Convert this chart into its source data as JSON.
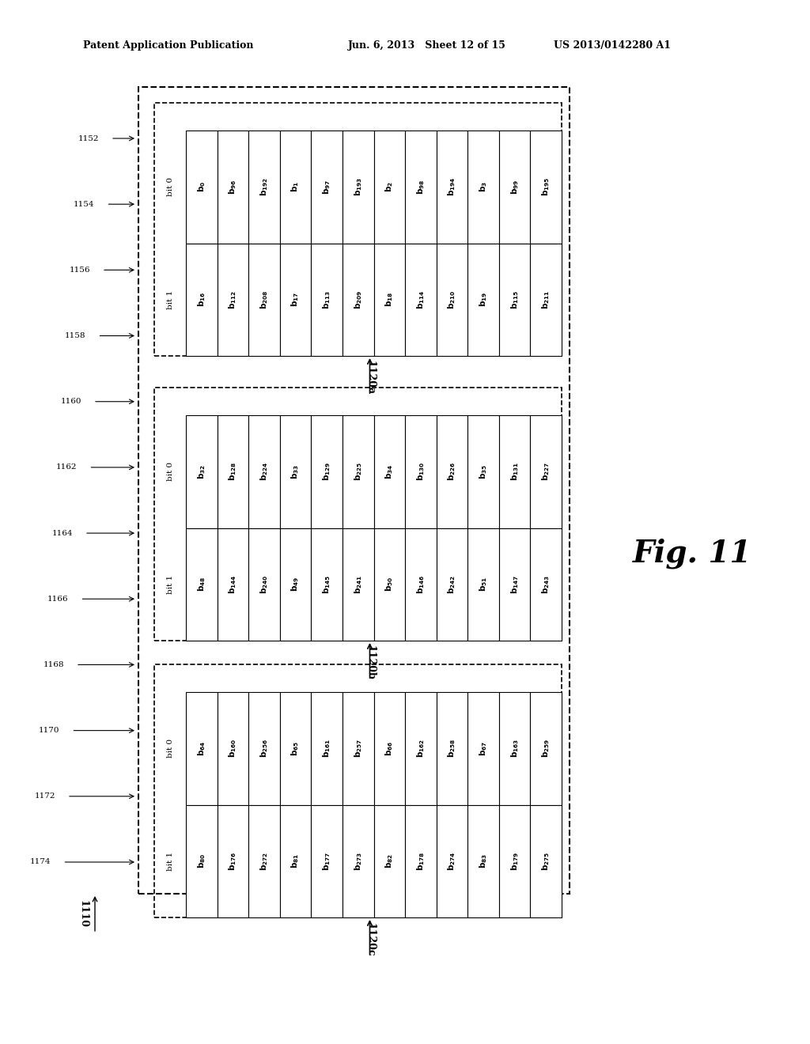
{
  "header_left": "Patent Application Publication",
  "header_mid": "Jun. 6, 2013   Sheet 12 of 15",
  "header_right": "US 2013/0142280 A1",
  "fig_label": "Fig. 11",
  "outer_label": "1110",
  "group_labels": [
    "1120a",
    "1120b",
    "1120c"
  ],
  "bit_labels": [
    "bit 0",
    "bit 1"
  ],
  "arrow_labels": [
    "1152",
    "1154",
    "1156",
    "1158",
    "1160",
    "1162",
    "1164",
    "1166",
    "1168",
    "1170",
    "1172",
    "1174"
  ],
  "groups": [
    {
      "bit0": [
        "b_0",
        "b_{96}",
        "b_{192}",
        "b_1",
        "b_{97}",
        "b_{193}",
        "b_2",
        "b_{98}",
        "b_{194}",
        "b_3",
        "b_{99}",
        "b_{195}"
      ],
      "bit1": [
        "b_{16}",
        "b_{112}",
        "b_{208}",
        "b_{17}",
        "b_{113}",
        "b_{209}",
        "b_{18}",
        "b_{114}",
        "b_{210}",
        "b_{19}",
        "b_{115}",
        "b_{211}"
      ]
    },
    {
      "bit0": [
        "b_{32}",
        "b_{128}",
        "b_{224}",
        "b_{33}",
        "b_{129}",
        "b_{225}",
        "b_{34}",
        "b_{130}",
        "b_{226}",
        "b_{35}",
        "b_{131}",
        "b_{227}"
      ],
      "bit1": [
        "b_{48}",
        "b_{144}",
        "b_{240}",
        "b_{49}",
        "b_{145}",
        "b_{241}",
        "b_{50}",
        "b_{146}",
        "b_{242}",
        "b_{51}",
        "b_{147}",
        "b_{243}"
      ]
    },
    {
      "bit0": [
        "b_{64}",
        "b_{160}",
        "b_{256}",
        "b_{65}",
        "b_{161}",
        "b_{257}",
        "b_{66}",
        "b_{162}",
        "b_{258}",
        "b_{67}",
        "b_{163}",
        "b_{259}"
      ],
      "bit1": [
        "b_{80}",
        "b_{176}",
        "b_{272}",
        "b_{81}",
        "b_{177}",
        "b_{273}",
        "b_{82}",
        "b_{178}",
        "b_{274}",
        "b_{83}",
        "b_{179}",
        "b_{275}"
      ]
    }
  ],
  "bg_color": "#ffffff",
  "cell_color": "#ffffff",
  "cell_border": "#000000",
  "dashed_border": "#000000",
  "text_color": "#000000"
}
